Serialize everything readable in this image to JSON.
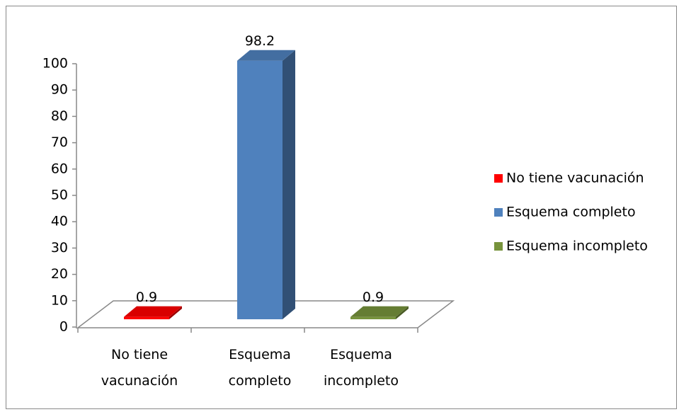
{
  "chart_data": {
    "type": "bar3d",
    "categories": [
      "No tiene vacunación",
      "Esquema completo",
      "Esquema incompleto"
    ],
    "series": [
      {
        "name": "No tiene vacunación",
        "color": "#ff0000"
      },
      {
        "name": "Esquema completo",
        "color": "#4f81bd"
      },
      {
        "name": "Esquema incompleto",
        "color": "#77933c"
      }
    ],
    "values": [
      0.9,
      98.2,
      0.9
    ],
    "ylim": [
      0,
      100
    ],
    "yticks": [
      0,
      10,
      20,
      30,
      40,
      50,
      60,
      70,
      80,
      90,
      100
    ],
    "legend": "right"
  }
}
